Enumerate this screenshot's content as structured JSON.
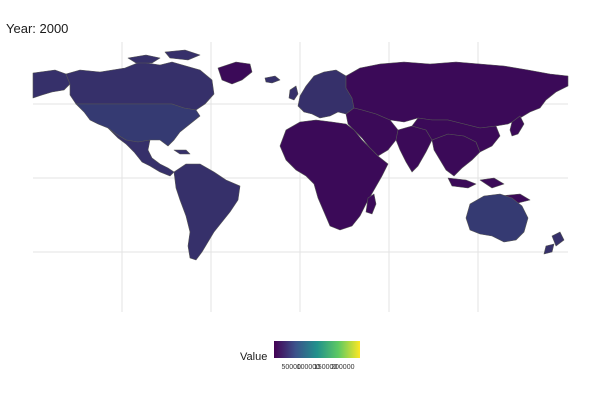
{
  "title": "Year: 2000",
  "legend": {
    "title": "Value",
    "ticks": [
      "50000",
      "100000",
      "150000",
      "200000"
    ],
    "scale_min": 0,
    "scale_max": 250000,
    "palette": [
      "#440154",
      "#3b528b",
      "#21918c",
      "#5ec962",
      "#fde725"
    ]
  },
  "colors": {
    "ocean": "#ffffff",
    "grid": "#e3e3e3",
    "border": "#555555",
    "low": "#3b0a58",
    "mid_low": "#36306a",
    "mid": "#353a72"
  },
  "regions": [
    {
      "name": "canada",
      "color_key": "mid_low"
    },
    {
      "name": "united-states",
      "color_key": "mid"
    },
    {
      "name": "alaska",
      "color_key": "mid_low"
    },
    {
      "name": "greenland",
      "color_key": "low"
    },
    {
      "name": "mexico-central-america",
      "color_key": "mid_low"
    },
    {
      "name": "south-america",
      "color_key": "mid_low"
    },
    {
      "name": "europe",
      "color_key": "mid_low"
    },
    {
      "name": "africa",
      "color_key": "low"
    },
    {
      "name": "middle-east",
      "color_key": "low"
    },
    {
      "name": "russia-asia",
      "color_key": "low"
    },
    {
      "name": "india",
      "color_key": "low"
    },
    {
      "name": "southeast-asia",
      "color_key": "low"
    },
    {
      "name": "japan",
      "color_key": "low"
    },
    {
      "name": "australia",
      "color_key": "mid"
    },
    {
      "name": "new-zealand",
      "color_key": "mid_low"
    },
    {
      "name": "madagascar",
      "color_key": "low"
    },
    {
      "name": "indonesia",
      "color_key": "low"
    },
    {
      "name": "uk",
      "color_key": "mid_low"
    },
    {
      "name": "iceland",
      "color_key": "mid_low"
    }
  ]
}
